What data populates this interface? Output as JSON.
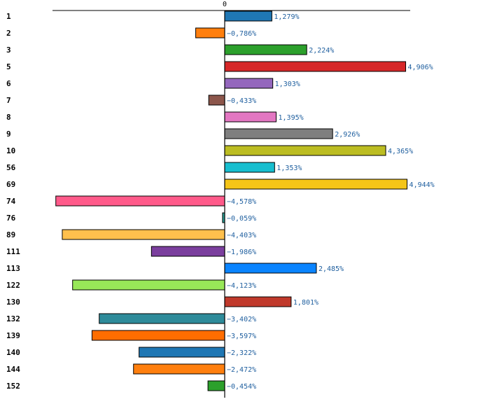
{
  "chart_data": {
    "type": "bar",
    "orientation": "horizontal",
    "title": "",
    "xlabel": "",
    "ylabel": "",
    "x_tick_labels": [
      "0"
    ],
    "xlim": [
      -5.0,
      5.4
    ],
    "value_suffix": "%",
    "decimal_separator": ",",
    "categories": [
      "1",
      "2",
      "3",
      "5",
      "6",
      "7",
      "8",
      "9",
      "10",
      "56",
      "69",
      "74",
      "76",
      "89",
      "111",
      "113",
      "122",
      "130",
      "132",
      "139",
      "140",
      "144",
      "152"
    ],
    "values": [
      1.279,
      -0.786,
      2.224,
      4.906,
      1.303,
      -0.433,
      1.395,
      2.926,
      4.365,
      1.353,
      4.944,
      -4.578,
      -0.059,
      -4.403,
      -1.986,
      2.485,
      -4.123,
      1.801,
      -3.402,
      -3.597,
      -2.322,
      -2.472,
      -0.454
    ],
    "value_labels": [
      "1,279%",
      "−0,786%",
      "2,224%",
      "4,906%",
      "1,303%",
      "−0,433%",
      "1,395%",
      "2,926%",
      "4,365%",
      "1,353%",
      "4,944%",
      "−4,578%",
      "−0,059%",
      "−4,403%",
      "−1,986%",
      "2,485%",
      "−4,123%",
      "1,801%",
      "−3,402%",
      "−3,597%",
      "−2,322%",
      "−2,472%",
      "−0,454%"
    ],
    "colors": [
      "#1f77b4",
      "#ff7f0e",
      "#2ca02c",
      "#d62728",
      "#9467bd",
      "#8c564b",
      "#e377c2",
      "#7f7f7f",
      "#bcbd22",
      "#17becf",
      "#f5c518",
      "#ff5a8a",
      "#2aa198",
      "#ffc04d",
      "#7b3f9e",
      "#0a84ff",
      "#98e858",
      "#c0392b",
      "#2e8b9a",
      "#ff6d00",
      "#1f77b4",
      "#ff7f0e",
      "#2ca02c"
    ]
  }
}
